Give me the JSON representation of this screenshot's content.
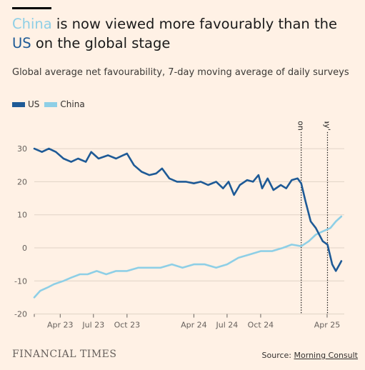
{
  "title": {
    "part1": "China",
    "part2": " is now viewed more favourably than the ",
    "part3": "US",
    "part4": " on the global stage"
  },
  "subtitle": "Global average net favourability, 7-day moving average of daily surveys",
  "footer": {
    "brand": "FINANCIAL TIMES",
    "source_label": "Source: ",
    "source_name": "Morning Consult"
  },
  "colors": {
    "us": "#1e5a96",
    "china": "#8ecfe6",
    "background": "#fff1e5"
  },
  "chart_data": {
    "type": "line",
    "ylim": [
      -20,
      32
    ],
    "yticks": [
      30,
      20,
      10,
      0,
      -10,
      -20
    ],
    "xlim": [
      "2023-01-20",
      "2025-05-18"
    ],
    "xticks": [
      {
        "date": "2023-04-01",
        "label": "Apr 23"
      },
      {
        "date": "2023-07-01",
        "label": "Jul 23"
      },
      {
        "date": "2023-10-01",
        "label": "Oct 23"
      },
      {
        "date": "2024-04-01",
        "label": "Apr 24"
      },
      {
        "date": "2024-07-01",
        "label": "Jul 24"
      },
      {
        "date": "2024-10-01",
        "label": "Oct 24"
      },
      {
        "date": "2025-04-01",
        "label": "Apr 25"
      }
    ],
    "annotations": [
      {
        "date": "2025-01-20",
        "label": "Inauguration"
      },
      {
        "date": "2025-04-02",
        "label": "'Liberation day'"
      }
    ],
    "grid": true,
    "legend": "top-left",
    "series": [
      {
        "name": "US",
        "points": [
          [
            "2023-01-20",
            30
          ],
          [
            "2023-02-10",
            29
          ],
          [
            "2023-03-01",
            30
          ],
          [
            "2023-03-20",
            29
          ],
          [
            "2023-04-10",
            27
          ],
          [
            "2023-05-01",
            26
          ],
          [
            "2023-05-20",
            27
          ],
          [
            "2023-06-10",
            26
          ],
          [
            "2023-06-25",
            29
          ],
          [
            "2023-07-15",
            27
          ],
          [
            "2023-08-10",
            28
          ],
          [
            "2023-09-01",
            27
          ],
          [
            "2023-09-20",
            28
          ],
          [
            "2023-10-01",
            28.5
          ],
          [
            "2023-10-20",
            25
          ],
          [
            "2023-11-10",
            23
          ],
          [
            "2023-12-01",
            22
          ],
          [
            "2023-12-20",
            22.5
          ],
          [
            "2024-01-05",
            24
          ],
          [
            "2024-01-25",
            21
          ],
          [
            "2024-02-15",
            20
          ],
          [
            "2024-03-10",
            20
          ],
          [
            "2024-04-01",
            19.5
          ],
          [
            "2024-04-20",
            20
          ],
          [
            "2024-05-10",
            19
          ],
          [
            "2024-06-01",
            20
          ],
          [
            "2024-06-20",
            18
          ],
          [
            "2024-07-05",
            20
          ],
          [
            "2024-07-20",
            16
          ],
          [
            "2024-08-05",
            19
          ],
          [
            "2024-08-25",
            20.5
          ],
          [
            "2024-09-10",
            20
          ],
          [
            "2024-09-25",
            22
          ],
          [
            "2024-10-05",
            18
          ],
          [
            "2024-10-20",
            21
          ],
          [
            "2024-11-05",
            17.5
          ],
          [
            "2024-11-25",
            19
          ],
          [
            "2024-12-10",
            18
          ],
          [
            "2024-12-25",
            20.5
          ],
          [
            "2025-01-10",
            21
          ],
          [
            "2025-01-20",
            19.5
          ],
          [
            "2025-02-01",
            14
          ],
          [
            "2025-02-15",
            8
          ],
          [
            "2025-03-01",
            6
          ],
          [
            "2025-03-20",
            2
          ],
          [
            "2025-04-02",
            1
          ],
          [
            "2025-04-15",
            -5
          ],
          [
            "2025-04-25",
            -7
          ],
          [
            "2025-05-05",
            -5
          ],
          [
            "2025-05-10",
            -4
          ]
        ]
      },
      {
        "name": "China",
        "points": [
          [
            "2023-01-20",
            -15
          ],
          [
            "2023-02-05",
            -13
          ],
          [
            "2023-02-25",
            -12
          ],
          [
            "2023-03-15",
            -11
          ],
          [
            "2023-04-10",
            -10
          ],
          [
            "2023-05-01",
            -9
          ],
          [
            "2023-05-25",
            -8
          ],
          [
            "2023-06-15",
            -8
          ],
          [
            "2023-07-10",
            -7
          ],
          [
            "2023-08-05",
            -8
          ],
          [
            "2023-09-01",
            -7
          ],
          [
            "2023-10-01",
            -7
          ],
          [
            "2023-11-01",
            -6
          ],
          [
            "2023-12-01",
            -6
          ],
          [
            "2024-01-01",
            -6
          ],
          [
            "2024-02-01",
            -5
          ],
          [
            "2024-03-01",
            -6
          ],
          [
            "2024-04-01",
            -5
          ],
          [
            "2024-05-01",
            -5
          ],
          [
            "2024-06-01",
            -6
          ],
          [
            "2024-07-01",
            -5
          ],
          [
            "2024-08-01",
            -3
          ],
          [
            "2024-09-01",
            -2
          ],
          [
            "2024-10-01",
            -1
          ],
          [
            "2024-11-01",
            -1
          ],
          [
            "2024-12-01",
            0
          ],
          [
            "2024-12-25",
            1
          ],
          [
            "2025-01-20",
            0.5
          ],
          [
            "2025-02-10",
            2
          ],
          [
            "2025-03-01",
            4
          ],
          [
            "2025-03-20",
            5
          ],
          [
            "2025-04-10",
            6
          ],
          [
            "2025-04-25",
            8
          ],
          [
            "2025-05-10",
            9.5
          ]
        ]
      }
    ]
  }
}
